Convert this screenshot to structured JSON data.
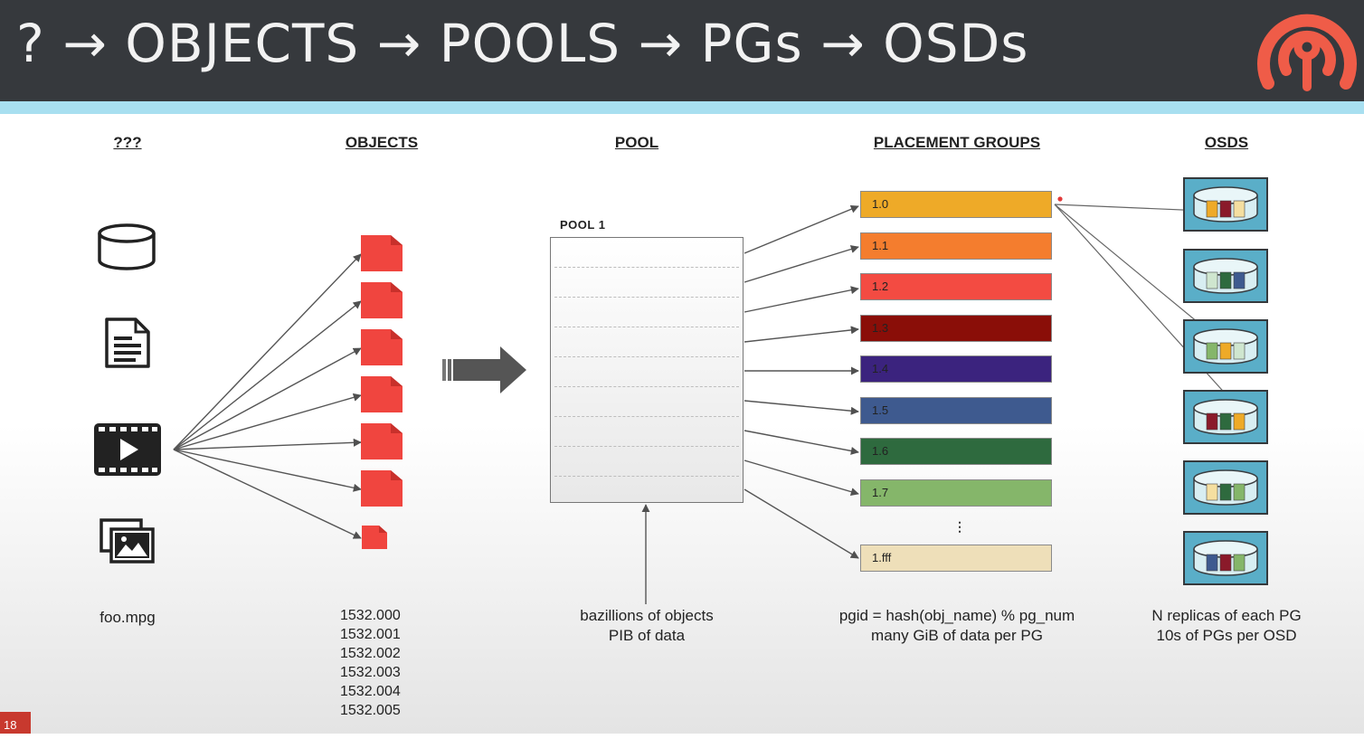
{
  "header": {
    "title": "? → OBJECTS → POOLS → PGs → OSDs",
    "logo_icon": "ceph-logo-icon",
    "logo_color": "#ef5c48"
  },
  "columns": {
    "unknown": "???",
    "objects": "OBJECTS",
    "pool": "POOL",
    "pgs": "PLACEMENT GROUPS",
    "osds": "OSDS"
  },
  "sources": {
    "icons": [
      "database-icon",
      "document-icon",
      "video-icon",
      "image-icon"
    ],
    "caption": "foo.mpg"
  },
  "objects": {
    "color": "#f0453f",
    "ids": [
      "1532.000",
      "1532.001",
      "1532.002",
      "1532.003",
      "1532.004",
      "1532.005"
    ]
  },
  "pool": {
    "label": "POOL 1",
    "note_line1": "bazillions of objects",
    "note_line2": "PIB of data"
  },
  "pgs": {
    "items": [
      {
        "id": "1.0",
        "color": "#eeaa28"
      },
      {
        "id": "1.1",
        "color": "#f47d2e"
      },
      {
        "id": "1.2",
        "color": "#f34b42"
      },
      {
        "id": "1.3",
        "color": "#8a0e08"
      },
      {
        "id": "1.4",
        "color": "#3b237e"
      },
      {
        "id": "1.5",
        "color": "#3e5a8f"
      },
      {
        "id": "1.6",
        "color": "#2e6a3e"
      },
      {
        "id": "1.7",
        "color": "#85b66a"
      },
      {
        "id": "1.fff",
        "color": "#eedfb9"
      }
    ],
    "ellipsis": "⋮",
    "formula": "pgid = hash(obj_name) % pg_num",
    "note": "many GiB of data per PG"
  },
  "osds": {
    "note_line1": "N replicas of each PG",
    "note_line2": "10s of PGs per OSD",
    "disks": [
      [
        "#eeaa28",
        "#8a1a2a",
        "#f5dfa0"
      ],
      [
        "#cfe6cf",
        "#2e6a3e",
        "#3e5a8f"
      ],
      [
        "#85b66a",
        "#eeaa28",
        "#cfe6cf"
      ],
      [
        "#8a1a2a",
        "#2e6a3e",
        "#eeaa28"
      ],
      [
        "#f5dfa0",
        "#2e6a3e",
        "#85b66a"
      ],
      [
        "#3e5a8f",
        "#8a1a2a",
        "#85b66a"
      ]
    ]
  },
  "slide": {
    "number": "18"
  }
}
